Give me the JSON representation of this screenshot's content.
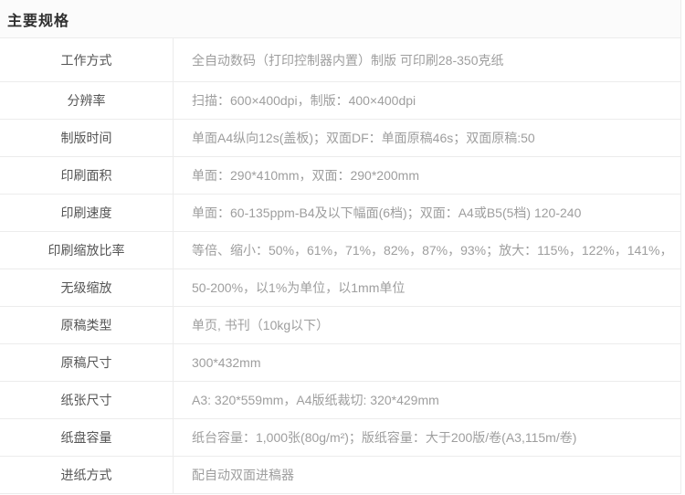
{
  "page": {
    "title": "主要规格"
  },
  "colors": {
    "border": "#ececec",
    "title_text": "#2f2f2f",
    "label_text": "#555555",
    "value_text": "#9e9e9e",
    "title_bg": "#fbfbfb"
  },
  "spec_table": {
    "rows": [
      {
        "label": "工作方式",
        "value": "全自动数码（打印控制器内置）制版 可印刷28-350克纸"
      },
      {
        "label": "分辨率",
        "value": "扫描：600×400dpi，制版：400×400dpi"
      },
      {
        "label": "制版时间",
        "value": "单面A4纵向12s(盖板)；双面DF：单面原稿46s；双面原稿:50"
      },
      {
        "label": "印刷面积",
        "value": "单面：290*410mm，双面：290*200mm"
      },
      {
        "label": "印刷速度",
        "value": "单面：60-135ppm-B4及以下幅面(6档)；双面：A4或B5(5档) 120-240"
      },
      {
        "label": "印刷缩放比率",
        "value": "等倍、缩小：50%，61%，71%，82%，87%，93%；放大：115%，122%，141%，"
      },
      {
        "label": "无级缩放",
        "value": "50-200%，以1%为单位，以1mm单位"
      },
      {
        "label": "原稿类型",
        "value": "单页, 书刊（10kg以下）"
      },
      {
        "label": "原稿尺寸",
        "value": "300*432mm"
      },
      {
        "label": "纸张尺寸",
        "value": "A3: 320*559mm，A4版纸裁切: 320*429mm"
      },
      {
        "label": "纸盘容量",
        "value": "纸台容量：1,000张(80g/m²)；版纸容量：大于200版/卷(A3,115m/卷)"
      },
      {
        "label": "进纸方式",
        "value": "配自动双面进稿器"
      }
    ]
  }
}
